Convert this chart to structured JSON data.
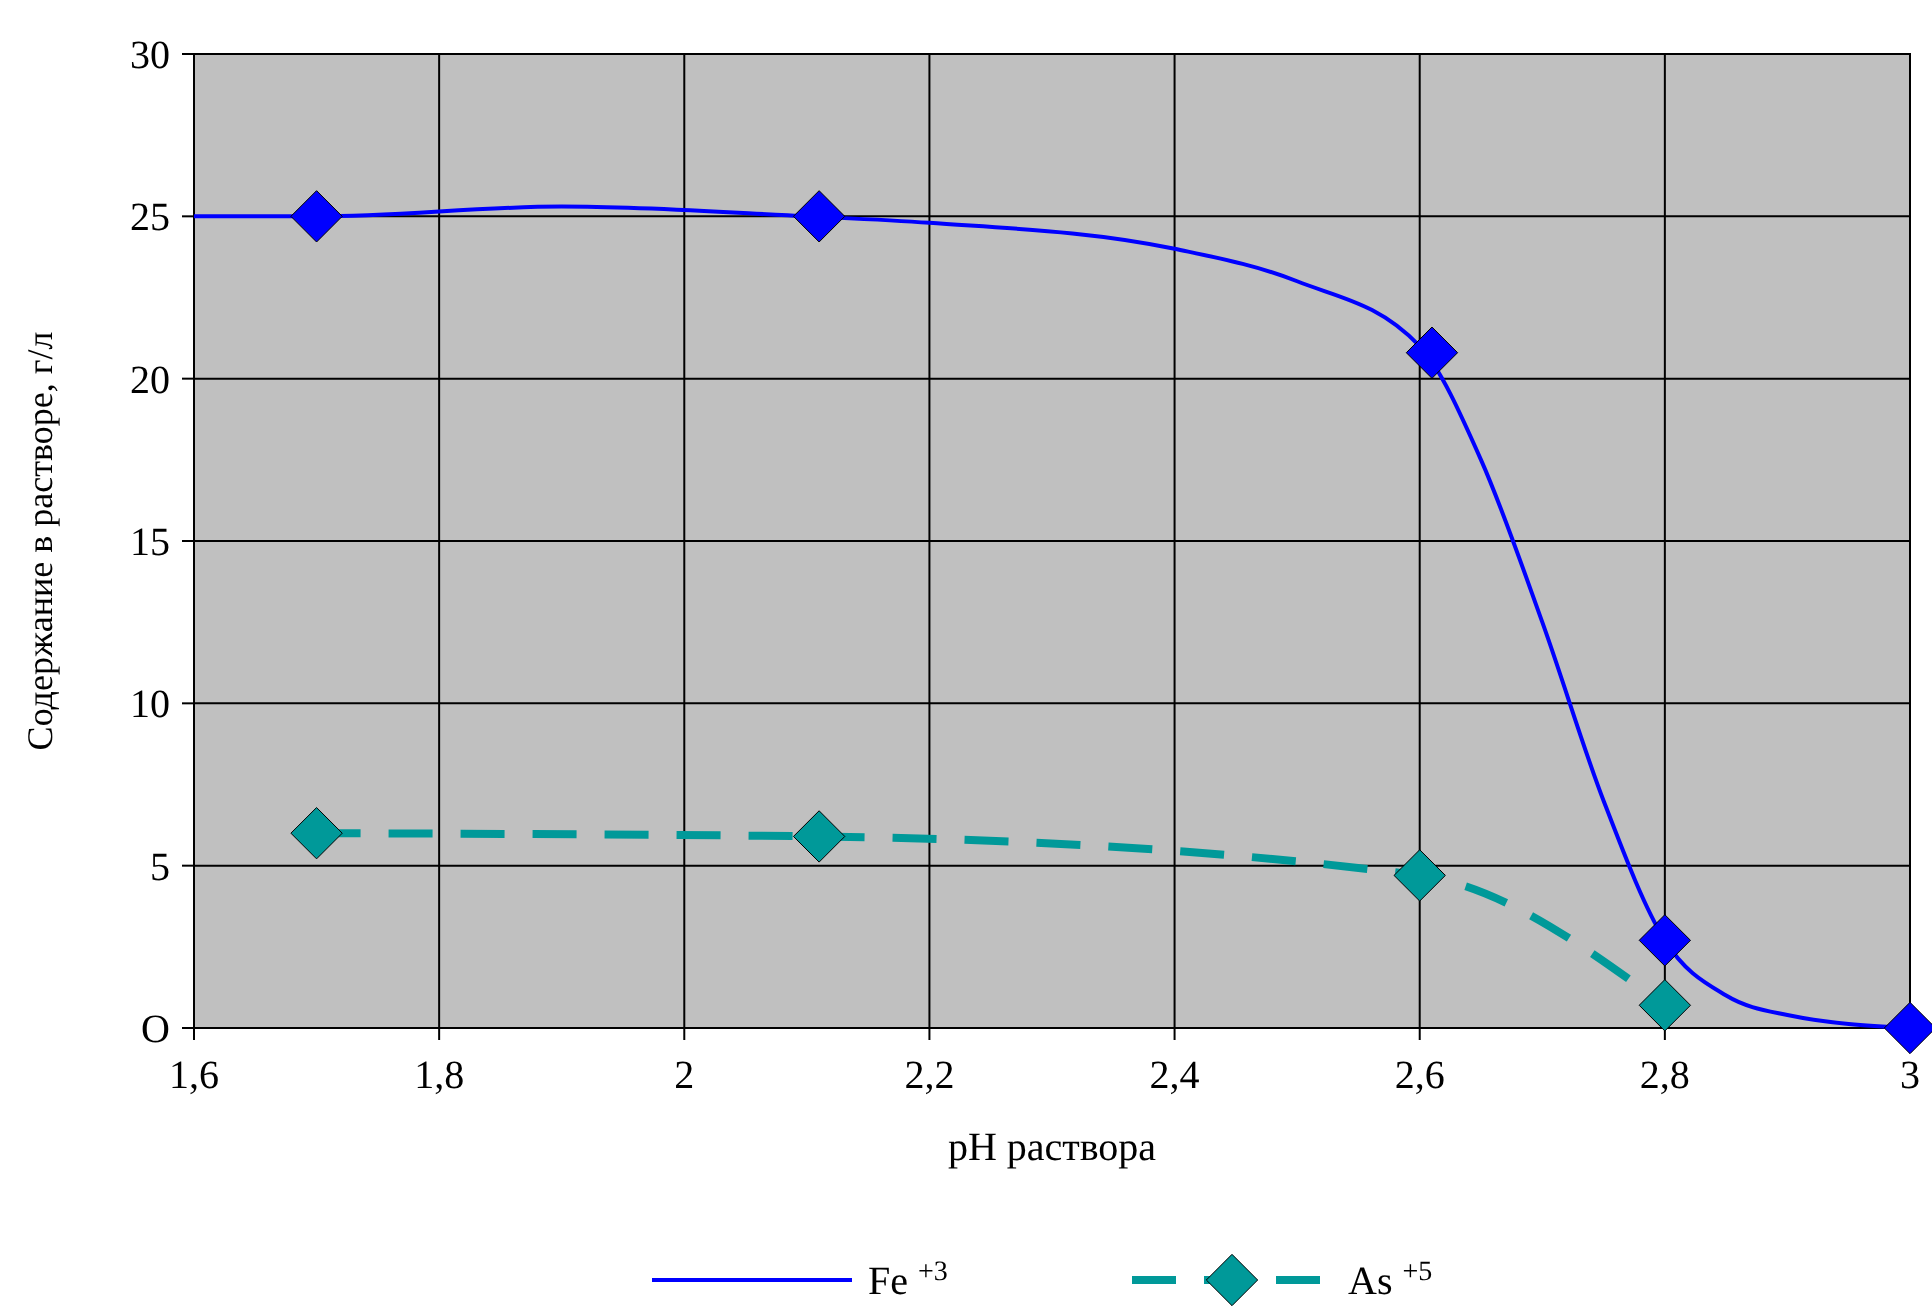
{
  "chart_data": {
    "type": "line",
    "xlabel": "pH раствора",
    "ylabel": "Содержание в растворе, г/л",
    "xlim": [
      1.6,
      3
    ],
    "xticks": [
      {
        "value": 1.6,
        "label": "1,6"
      },
      {
        "value": 1.8,
        "label": "1,8"
      },
      2,
      {
        "value": 2.2,
        "label": "2,2"
      },
      {
        "value": 2.4,
        "label": "2,4"
      },
      {
        "value": 2.6,
        "label": "2,6"
      },
      {
        "value": 2.8,
        "label": "2,8"
      },
      3
    ],
    "ylim": [
      0,
      30
    ],
    "yticks": [
      {
        "value": 0,
        "label": "O"
      },
      5,
      10,
      15,
      20,
      25,
      30
    ],
    "grid": true,
    "legend": "bottom",
    "series": [
      {
        "name": "Fe $^{+3}$",
        "color": "#0000ff",
        "marker": "none",
        "line_style": "solid",
        "x": [
          1.6,
          1.7,
          1.9,
          2.1,
          2.2,
          2.4,
          2.5,
          2.6,
          2.65,
          2.7,
          2.75,
          2.8,
          2.85,
          2.9,
          3.0
        ],
        "values": [
          25.0,
          25.0,
          25.3,
          25.0,
          24.8,
          24.0,
          23.0,
          21.0,
          17.5,
          12.5,
          7.0,
          2.7,
          1.0,
          0.4,
          0
        ]
      },
      {
        "color": "#0000ff",
        "type": "scatter",
        "marker": "diamond",
        "x": [
          1.7,
          2.11,
          2.61,
          2.8,
          3.0
        ],
        "values": [
          25.0,
          25.0,
          20.8,
          2.7,
          0
        ]
      },
      {
        "name": "As $^{+5}$",
        "color": "#009999",
        "marker": "diamond",
        "line_style": "dashed",
        "x": [
          1.7,
          2.11,
          2.6,
          2.8
        ],
        "values": [
          6.0,
          5.9,
          4.7,
          0.7
        ]
      }
    ]
  }
}
